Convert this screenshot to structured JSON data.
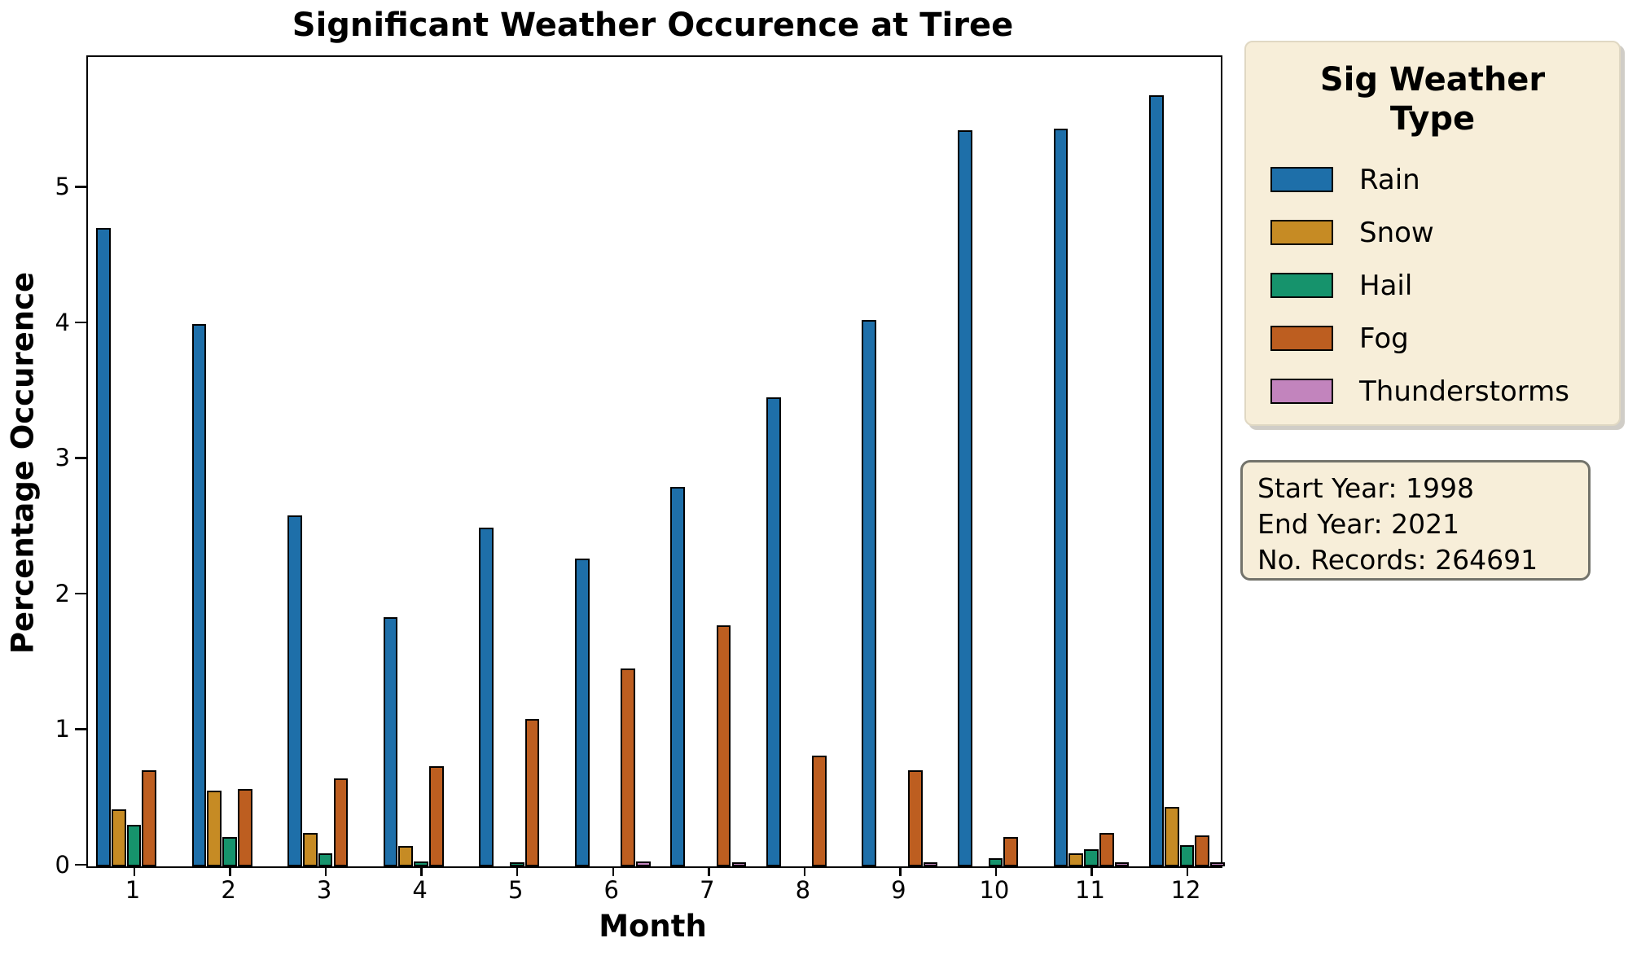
{
  "title": "Significant Weather Occurence at Tiree",
  "chart_data": {
    "type": "bar",
    "title": "Significant Weather Occurence at Tiree",
    "xlabel": "Month",
    "ylabel": "Percentage Occurence",
    "categories": [
      "1",
      "2",
      "3",
      "4",
      "5",
      "6",
      "7",
      "8",
      "9",
      "10",
      "11",
      "12"
    ],
    "yticks": [
      0,
      1,
      2,
      3,
      4,
      5
    ],
    "ylim": [
      0,
      5.97
    ],
    "grid": false,
    "legend_title": "Sig Weather Type",
    "legend_position": "outside upper right",
    "series": [
      {
        "name": "Rain",
        "color": "#1e6fa9",
        "values": [
          4.7,
          3.99,
          2.58,
          1.83,
          2.49,
          2.26,
          2.79,
          3.45,
          4.02,
          5.42,
          5.43,
          5.68
        ]
      },
      {
        "name": "Snow",
        "color": "#c68b24",
        "values": [
          0.41,
          0.55,
          0.24,
          0.14,
          0,
          0,
          0,
          0,
          0,
          0,
          0.09,
          0.43
        ]
      },
      {
        "name": "Hail",
        "color": "#16936c",
        "values": [
          0.3,
          0.21,
          0.09,
          0.03,
          0.01,
          0,
          0,
          0,
          0,
          0.05,
          0.12,
          0.15
        ]
      },
      {
        "name": "Fog",
        "color": "#bd5e20",
        "values": [
          0.7,
          0.56,
          0.64,
          0.73,
          1.08,
          1.45,
          1.77,
          0.81,
          0.7,
          0.21,
          0.24,
          0.22
        ]
      },
      {
        "name": "Thunderstorms",
        "color": "#c284bd",
        "values": [
          0,
          0,
          0,
          0,
          0,
          0.03,
          0.01,
          0,
          0.01,
          0,
          0.01,
          0.01
        ]
      }
    ]
  },
  "legend": {
    "title": "Sig Weather\nType"
  },
  "info_box": {
    "line1": "Start Year: 1998",
    "line2": "End Year: 2021",
    "line3": "No. Records: 264691"
  }
}
